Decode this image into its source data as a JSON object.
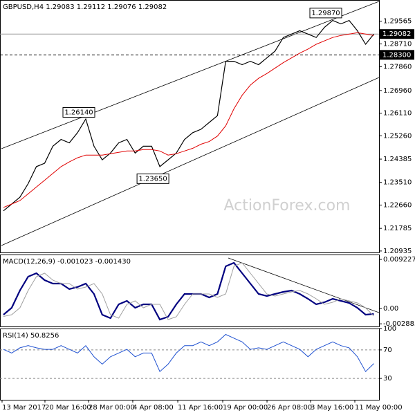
{
  "chart_data": [
    {
      "type": "line",
      "title": "GBPUSD,H4 1.29083 1.29112 1.29076 1.29082",
      "watermark": "ActionForex.com",
      "x": [
        0,
        1,
        2,
        3,
        4,
        5,
        6,
        7,
        8,
        9,
        10,
        11,
        12,
        13,
        14,
        15,
        16,
        17,
        18,
        19,
        20,
        21,
        22,
        23,
        24,
        25,
        26,
        27,
        28,
        29,
        30,
        31,
        32,
        33,
        34,
        35,
        36,
        37,
        38,
        39,
        40,
        41,
        42,
        43,
        44,
        45
      ],
      "xlim": [
        -0.42,
        45.63
      ],
      "ylim": [
        1.2088,
        1.3036
      ],
      "yticks": [
        1.29565,
        {
          "value": 1.2871,
          "label": "1.28710"
        },
        {
          "value": 1.2786,
          "label": "1.27860"
        },
        {
          "value": 1.2696,
          "label": "1.26960"
        },
        {
          "value": 1.2611,
          "label": "1.26110"
        },
        {
          "value": 1.2526,
          "label": "1.25260"
        },
        1.24385,
        {
          "value": 1.2351,
          "label": "1.23510"
        },
        {
          "value": 1.2266,
          "label": "1.22660"
        },
        1.21785,
        1.20935
      ],
      "grid": false,
      "series": [
        {
          "color": "#000000",
          "width": 1.2,
          "values": [
            1.22444,
            1.22699,
            1.22954,
            1.23465,
            1.24103,
            1.2423,
            1.24869,
            1.25124,
            1.24996,
            1.25379,
            1.25889,
            1.24869,
            1.24358,
            1.24613,
            1.24996,
            1.25124,
            1.24613,
            1.24869,
            1.24869,
            1.24103,
            1.24358,
            1.24613,
            1.25124,
            1.25379,
            1.25507,
            1.25762,
            1.26017,
            1.28059,
            1.28059,
            1.27931,
            1.28059,
            1.27931,
            1.28187,
            1.28442,
            1.28952,
            1.2908,
            1.29207,
            1.2908,
            1.28952,
            1.29335,
            1.2959,
            1.29463,
            1.2959,
            1.29207,
            1.28697,
            1.29082
          ]
        },
        {
          "color": "#e00000",
          "width": 1,
          "values": [
            1.22571,
            1.22699,
            1.22827,
            1.23082,
            1.23337,
            1.23592,
            1.23848,
            1.24103,
            1.24281,
            1.24435,
            1.24537,
            1.24537,
            1.24537,
            1.24588,
            1.24639,
            1.2469,
            1.2469,
            1.24741,
            1.24741,
            1.2469,
            1.24537,
            1.24588,
            1.2469,
            1.24792,
            1.24945,
            1.25047,
            1.25251,
            1.25634,
            1.26272,
            1.26783,
            1.27166,
            1.27421,
            1.27599,
            1.27804,
            1.28008,
            1.28187,
            1.28365,
            1.28518,
            1.28697,
            1.28825,
            1.28952,
            1.29029,
            1.2908,
            1.29131,
            1.2908,
            1.29029
          ]
        }
      ],
      "price_levels": [
        {
          "value": 1.29082,
          "label": "1.29082",
          "style": "solid"
        },
        {
          "value": 1.283,
          "label": "1.28300",
          "style": "dashed"
        }
      ],
      "annotations": [
        {
          "x": 40,
          "value": 1.2987,
          "label": "1.29870"
        },
        {
          "x": 10,
          "value": 1.2614,
          "label": "1.26140"
        },
        {
          "x": 19,
          "value": 1.2365,
          "label": "1.23650"
        }
      ]
    },
    {
      "type": "line",
      "title": "MACD(12,26,9) -0.001023 -0.001430",
      "x": [
        0,
        1,
        2,
        3,
        4,
        5,
        6,
        7,
        8,
        9,
        10,
        11,
        12,
        13,
        14,
        15,
        16,
        17,
        18,
        19,
        20,
        21,
        22,
        23,
        24,
        25,
        26,
        27,
        28,
        29,
        30,
        31,
        32,
        33,
        34,
        35,
        36,
        37,
        38,
        39,
        40,
        41,
        42,
        43,
        44,
        45
      ],
      "xlim": [
        -0.42,
        45.63
      ],
      "ylim": [
        -0.00338,
        0.01014
      ],
      "yticks": [
        0.009227,
        {
          "value": 0,
          "label": "0.00"
        },
        -0.002883
      ],
      "grid": false,
      "series": [
        {
          "color": "#000080",
          "width": 2.2,
          "values": [
            -0.00117,
            0.00013,
            0.00338,
            0.00598,
            0.00663,
            0.00533,
            0.00468,
            0.00468,
            0.00364,
            0.00403,
            0.00468,
            0.00273,
            -0.00117,
            -0.00182,
            0.00078,
            0.00143,
            0.00013,
            0.00078,
            0.00078,
            -0.00208,
            -0.00156,
            0.00078,
            0.00273,
            0.00273,
            0.00273,
            0.00208,
            0.00273,
            0.00793,
            0.00858,
            0.00663,
            0.00468,
            0.00273,
            0.00234,
            0.00273,
            0.00312,
            0.00338,
            0.00273,
            0.00182,
            0.00078,
            0.00117,
            0.00182,
            0.00143,
            0.00104,
            0.00013,
            -0.00117,
            -0.00102
          ]
        },
        {
          "color": "#a0a0a0",
          "width": 1,
          "values": [
            -0.0015,
            -0.00117,
            0.00013,
            0.00338,
            0.00598,
            0.00663,
            0.00533,
            0.00468,
            0.00468,
            0.00364,
            0.00403,
            0.00468,
            0.00273,
            -0.00117,
            -0.00182,
            0.00078,
            0.00143,
            0.00013,
            0.00078,
            0.00078,
            -0.00208,
            -0.00156,
            0.00078,
            0.00273,
            0.00273,
            0.00273,
            0.00208,
            0.00273,
            0.00793,
            0.00858,
            0.00663,
            0.00468,
            0.00273,
            0.00234,
            0.00273,
            0.00312,
            0.00338,
            0.00273,
            0.00182,
            0.00078,
            0.00117,
            0.00182,
            0.00143,
            0.00104,
            0.00013,
            -0.00143
          ]
        }
      ]
    },
    {
      "type": "line",
      "title": "RSI(14) 50.8256",
      "x": [
        0,
        1,
        2,
        3,
        4,
        5,
        6,
        7,
        8,
        9,
        10,
        11,
        12,
        13,
        14,
        15,
        16,
        17,
        18,
        19,
        20,
        21,
        22,
        23,
        24,
        25,
        26,
        27,
        28,
        29,
        30,
        31,
        32,
        33,
        34,
        35,
        36,
        37,
        38,
        39,
        40,
        41,
        42,
        43,
        44,
        45
      ],
      "xlim": [
        -0.42,
        45.63
      ],
      "ylim": [
        0,
        100
      ],
      "yticks": [
        100,
        70,
        30
      ],
      "grid": true,
      "xticks": [
        {
          "value": -0.17,
          "label": "13 Mar 2017"
        },
        {
          "value": 5.04,
          "label": "20 Mar 16:00"
        },
        {
          "value": 10.34,
          "label": "28 Mar 00:00"
        },
        {
          "value": 15.71,
          "label": "4 Apr 08:00"
        },
        {
          "value": 21.18,
          "label": "11 Apr 16:00"
        },
        {
          "value": 26.64,
          "label": "19 Apr 00:00"
        },
        {
          "value": 32.02,
          "label": "26 Apr 08:00"
        },
        {
          "value": 37.31,
          "label": "3 May 16:00"
        },
        {
          "value": 42.69,
          "label": "11 May 00:00"
        }
      ],
      "series": [
        {
          "color": "#1e50d0",
          "width": 1,
          "values": [
            70.8,
            65.6,
            72.9,
            76,
            72.9,
            70.8,
            70.8,
            76,
            70.8,
            65.6,
            76,
            60.4,
            50,
            60.4,
            65.6,
            70.8,
            60.4,
            65.6,
            65.6,
            39.6,
            50,
            65.6,
            76,
            76,
            81.3,
            76,
            81.3,
            91.7,
            86.5,
            81.3,
            70.8,
            72.9,
            70.8,
            76,
            81.3,
            76,
            70.8,
            60.4,
            70.8,
            76,
            81.3,
            76,
            72.9,
            60.4,
            39.6,
            50.8256
          ]
        }
      ]
    }
  ]
}
